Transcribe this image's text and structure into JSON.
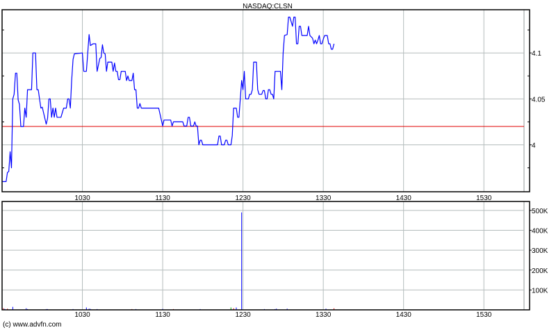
{
  "chart_data": [
    {
      "type": "line",
      "title": "NASDAQ:CLSN",
      "x_ticks": [
        "1030",
        "1130",
        "1230",
        "1330",
        "1430",
        "1530"
      ],
      "y_ticks": [
        "4",
        "4.05",
        "4.1"
      ],
      "y_tick_values": [
        4.0,
        4.05,
        4.1
      ],
      "xlim": [
        "09:30",
        "16:00"
      ],
      "ylim": [
        3.949,
        4.147
      ],
      "grid": true,
      "reference_line": {
        "value": 4.02,
        "color": "#e00000"
      },
      "line_color": "#0000ff",
      "series": [
        {
          "points": [
            [
              "09:30",
              3.96
            ],
            [
              "09:33",
              3.96
            ],
            [
              "09:34",
              3.97
            ],
            [
              "09:35",
              3.971
            ],
            [
              "09:36",
              3.9925
            ],
            [
              "09:37",
              3.975
            ],
            [
              "09:38",
              4.05
            ],
            [
              "09:39",
              4.055
            ],
            [
              "09:40",
              4.078
            ],
            [
              "09:41",
              4.078
            ],
            [
              "09:42",
              4.049
            ],
            [
              "09:43",
              4.044
            ],
            [
              "09:44",
              4.02
            ],
            [
              "09:46",
              4.02
            ],
            [
              "09:47",
              4.04
            ],
            [
              "09:48",
              4.03
            ],
            [
              "09:49",
              4.06
            ],
            [
              "09:52",
              4.06
            ],
            [
              "09:53",
              4.1
            ],
            [
              "09:55",
              4.1
            ],
            [
              "09:56",
              4.06
            ],
            [
              "09:57",
              4.06
            ],
            [
              "09:59",
              4.04
            ],
            [
              "10:00",
              4.041
            ],
            [
              "10:03",
              4.0225
            ],
            [
              "10:04",
              4.029
            ],
            [
              "10:05",
              4.05
            ],
            [
              "10:06",
              4.05
            ],
            [
              "10:07",
              4.03
            ],
            [
              "10:08",
              4.04
            ],
            [
              "10:09",
              4.03
            ],
            [
              "10:10",
              4.04
            ],
            [
              "10:11",
              4.03
            ],
            [
              "10:14",
              4.03
            ],
            [
              "10:16",
              4.04
            ],
            [
              "10:18",
              4.04
            ],
            [
              "10:19",
              4.05
            ],
            [
              "10:20",
              4.05
            ],
            [
              "10:21",
              4.04
            ],
            [
              "10:22",
              4.07
            ],
            [
              "10:23",
              4.093
            ],
            [
              "10:24",
              4.099
            ],
            [
              "10:30",
              4.1
            ],
            [
              "10:31",
              4.08
            ],
            [
              "10:33",
              4.08
            ],
            [
              "10:35",
              4.12
            ],
            [
              "10:36",
              4.108
            ],
            [
              "10:38",
              4.11
            ],
            [
              "10:40",
              4.11
            ],
            [
              "10:41",
              4.08
            ],
            [
              "10:43",
              4.094
            ],
            [
              "10:44",
              4.095
            ],
            [
              "10:45",
              4.109
            ],
            [
              "10:46",
              4.1
            ],
            [
              "10:47",
              4.099
            ],
            [
              "10:48",
              4.08
            ],
            [
              "10:49",
              4.09
            ],
            [
              "10:52",
              4.09
            ],
            [
              "10:53",
              4.08
            ],
            [
              "10:54",
              4.089
            ],
            [
              "10:55",
              4.08
            ],
            [
              "10:56",
              4.08
            ],
            [
              "10:57",
              4.071
            ],
            [
              "10:58",
              4.071
            ],
            [
              "10:59",
              4.08
            ],
            [
              "11:02",
              4.08
            ],
            [
              "11:03",
              4.07
            ],
            [
              "11:04",
              4.075
            ],
            [
              "11:05",
              4.07
            ],
            [
              "11:07",
              4.07
            ],
            [
              "11:08",
              4.078
            ],
            [
              "11:09",
              4.06
            ],
            [
              "11:10",
              4.06
            ],
            [
              "11:11",
              4.04
            ],
            [
              "11:12",
              4.04
            ],
            [
              "11:13",
              4.045
            ],
            [
              "11:14",
              4.04
            ],
            [
              "11:27",
              4.04
            ],
            [
              "11:30",
              4.0205
            ],
            [
              "11:31",
              4.027
            ],
            [
              "11:36",
              4.027
            ],
            [
              "11:37",
              4.0205
            ],
            [
              "11:38",
              4.025
            ],
            [
              "11:45",
              4.025
            ],
            [
              "11:46",
              4.0205
            ],
            [
              "11:48",
              4.0205
            ],
            [
              "11:49",
              4.03
            ],
            [
              "11:50",
              4.03
            ],
            [
              "11:51",
              4.0205
            ],
            [
              "11:53",
              4.0205
            ],
            [
              "11:54",
              4.025
            ],
            [
              "11:55",
              4.0205
            ],
            [
              "11:56",
              4.0205
            ],
            [
              "11:57",
              4.0
            ],
            [
              "11:58",
              4.005
            ],
            [
              "11:59",
              4.005
            ],
            [
              "12:00",
              4.0
            ],
            [
              "12:11",
              4.0
            ],
            [
              "12:12",
              4.0095
            ],
            [
              "12:13",
              4.0095
            ],
            [
              "12:14",
              4.0
            ],
            [
              "12:16",
              4.0
            ],
            [
              "12:17",
              4.005
            ],
            [
              "12:18",
              4.005
            ],
            [
              "12:19",
              4.0
            ],
            [
              "12:21",
              4.0
            ],
            [
              "12:22",
              4.01
            ],
            [
              "12:23",
              4.04
            ],
            [
              "12:25",
              4.04
            ],
            [
              "12:26",
              4.03
            ],
            [
              "12:27",
              4.03
            ],
            [
              "12:29",
              4.07
            ],
            [
              "12:30",
              4.06
            ],
            [
              "12:31",
              4.08
            ],
            [
              "12:32",
              4.05
            ],
            [
              "12:34",
              4.05
            ],
            [
              "12:35",
              4.055
            ],
            [
              "12:36",
              4.055
            ],
            [
              "12:37",
              4.06
            ],
            [
              "12:38",
              4.09
            ],
            [
              "12:40",
              4.09
            ],
            [
              "12:41",
              4.06
            ],
            [
              "12:42",
              4.055
            ],
            [
              "12:44",
              4.055
            ],
            [
              "12:45",
              4.059
            ],
            [
              "12:46",
              4.059
            ],
            [
              "12:47",
              4.05
            ],
            [
              "12:48",
              4.05
            ],
            [
              "12:49",
              4.06
            ],
            [
              "12:50",
              4.06
            ],
            [
              "12:51",
              4.055
            ],
            [
              "12:52",
              4.055
            ],
            [
              "12:53",
              4.05
            ],
            [
              "12:54",
              4.08
            ],
            [
              "12:58",
              4.08
            ],
            [
              "12:59",
              4.06
            ],
            [
              "13:00",
              4.1
            ],
            [
              "13:01",
              4.119
            ],
            [
              "13:03",
              4.12
            ],
            [
              "13:04",
              4.139
            ],
            [
              "13:05",
              4.139
            ],
            [
              "13:07",
              4.129
            ],
            [
              "13:08",
              4.139
            ],
            [
              "13:09",
              4.139
            ],
            [
              "13:10",
              4.11
            ],
            [
              "13:11",
              4.11
            ],
            [
              "13:12",
              4.129
            ],
            [
              "13:13",
              4.129
            ],
            [
              "13:14",
              4.119
            ],
            [
              "13:18",
              4.119
            ],
            [
              "13:19",
              4.129
            ],
            [
              "13:20",
              4.119
            ],
            [
              "13:22",
              4.116
            ],
            [
              "13:23",
              4.11
            ],
            [
              "13:24",
              4.114
            ],
            [
              "13:25",
              4.11
            ],
            [
              "13:26",
              4.114
            ],
            [
              "13:27",
              4.119
            ],
            [
              "13:28",
              4.11
            ],
            [
              "13:29",
              4.11
            ],
            [
              "13:30",
              4.115
            ],
            [
              "13:31",
              4.119
            ],
            [
              "13:33",
              4.119
            ],
            [
              "13:34",
              4.11
            ],
            [
              "13:35",
              4.11
            ],
            [
              "13:36",
              4.104
            ],
            [
              "13:37",
              4.104
            ],
            [
              "13:38",
              4.11
            ]
          ]
        }
      ]
    },
    {
      "type": "bar",
      "x_ticks": [
        "1030",
        "1130",
        "1230",
        "1330",
        "1430",
        "1530"
      ],
      "y_ticks": [
        "100K",
        "200K",
        "300K",
        "400K",
        "500K"
      ],
      "y_tick_values": [
        100000,
        200000,
        300000,
        400000,
        500000
      ],
      "xlim": [
        "09:30",
        "16:00"
      ],
      "ylim": [
        0,
        545000
      ],
      "grid": true,
      "colors": {
        "up": "#0000ff",
        "down": "#e00000",
        "neutral": "#00a000"
      },
      "bars": [
        [
          "09:31",
          8000,
          "down"
        ],
        [
          "09:32",
          5000,
          "up"
        ],
        [
          "09:34",
          6000,
          "down"
        ],
        [
          "09:38",
          15000,
          "up"
        ],
        [
          "09:48",
          8000,
          "up"
        ],
        [
          "09:49",
          4000,
          "up"
        ],
        [
          "10:03",
          4000,
          "up"
        ],
        [
          "10:04",
          4000,
          "up"
        ],
        [
          "10:23",
          4000,
          "up"
        ],
        [
          "10:33",
          12000,
          "up"
        ],
        [
          "10:35",
          6000,
          "up"
        ],
        [
          "10:36",
          5000,
          "up"
        ],
        [
          "10:41",
          4000,
          "up"
        ],
        [
          "11:07",
          4000,
          "down"
        ],
        [
          "11:10",
          4000,
          "up"
        ],
        [
          "11:30",
          5000,
          "up"
        ],
        [
          "11:38",
          4000,
          "down"
        ],
        [
          "11:58",
          4000,
          "up"
        ],
        [
          "12:21",
          12000,
          "neutral"
        ],
        [
          "12:23",
          8000,
          "down"
        ],
        [
          "12:25",
          12000,
          "up"
        ],
        [
          "12:29",
          490000,
          "up"
        ],
        [
          "12:46",
          4000,
          "up"
        ],
        [
          "12:54",
          4000,
          "up"
        ],
        [
          "12:55",
          6000,
          "up"
        ],
        [
          "13:03",
          6000,
          "up"
        ],
        [
          "13:32",
          6000,
          "up"
        ],
        [
          "13:38",
          8000,
          "down"
        ]
      ]
    }
  ],
  "footer": {
    "copyright": "(c) www.advfn.com"
  }
}
